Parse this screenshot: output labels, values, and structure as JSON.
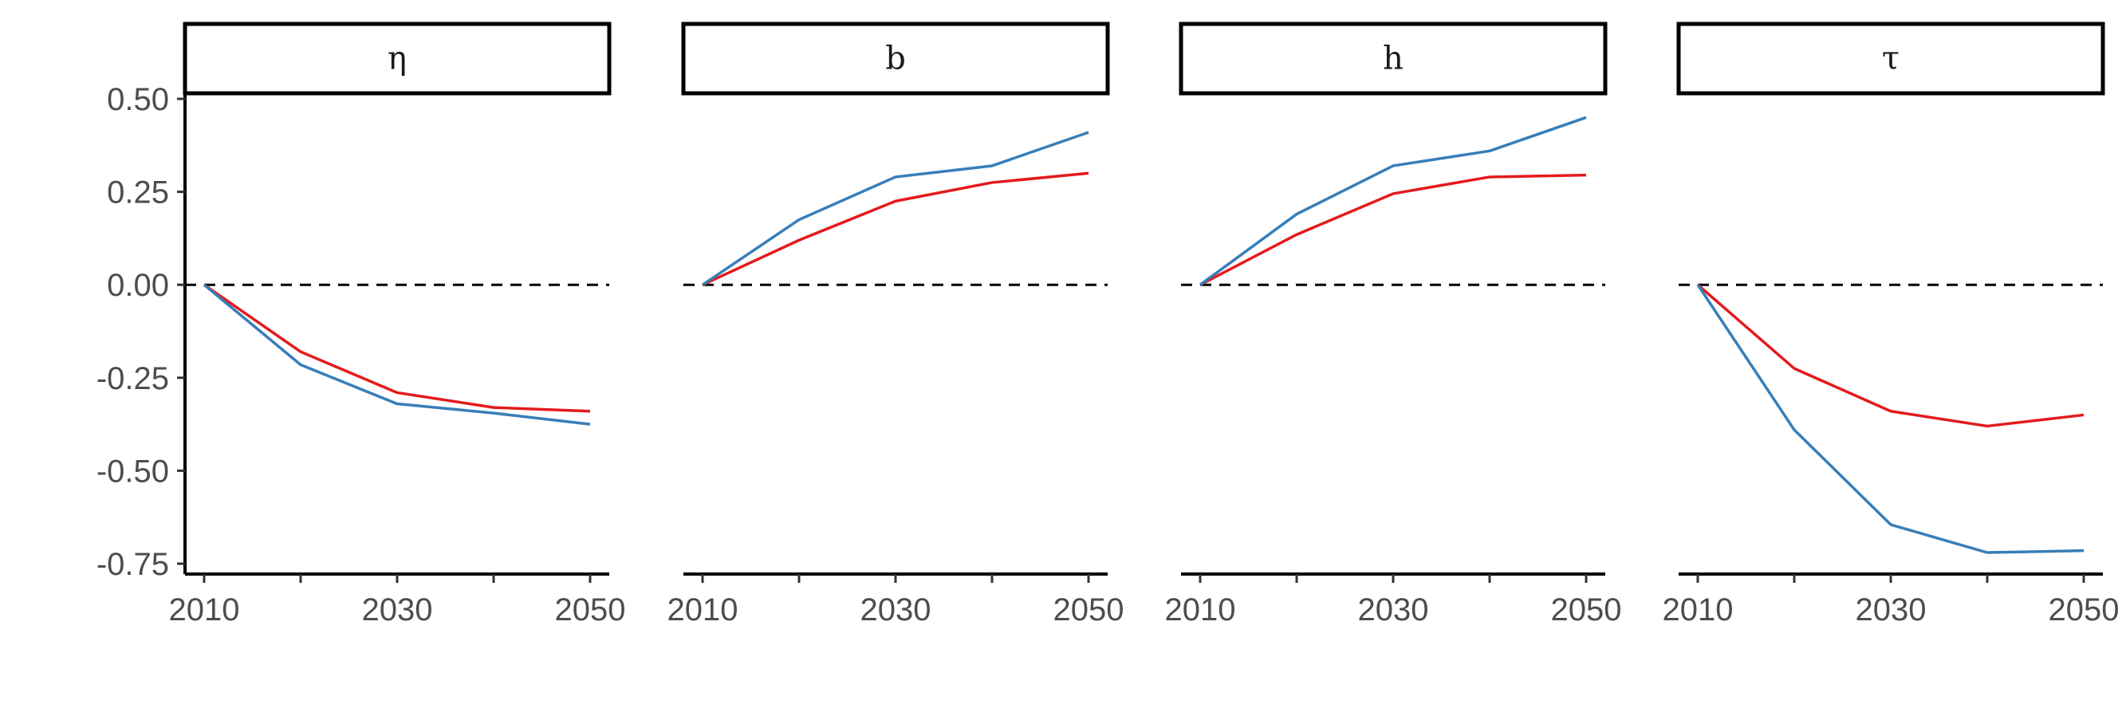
{
  "chart_data": {
    "type": "line",
    "x": [
      2010,
      2020,
      2030,
      2040,
      2050
    ],
    "x_tick_labels": [
      "2010",
      "2030",
      "2050"
    ],
    "x_ticks": [
      2010,
      2020,
      2030,
      2040,
      2050
    ],
    "y_tick_labels": [
      "0.50",
      "0.25",
      "0.00",
      "-0.25",
      "-0.50",
      "-0.75"
    ],
    "y_ticks": [
      0.5,
      0.25,
      0.0,
      -0.25,
      -0.5,
      -0.75
    ],
    "xlim": [
      2010,
      2050
    ],
    "ylim": [
      -0.77,
      0.5
    ],
    "reference_line": 0,
    "grid": false,
    "legend": "none",
    "colors": {
      "red": "#e41a1c",
      "blue": "#377eb8",
      "reference": "#000000"
    },
    "panels": [
      {
        "label": "η",
        "series": [
          {
            "color": "#e41a1c",
            "values": [
              0.0,
              -0.18,
              -0.29,
              -0.33,
              -0.34
            ]
          },
          {
            "color": "#377eb8",
            "values": [
              0.0,
              -0.215,
              -0.32,
              -0.345,
              -0.375
            ]
          }
        ]
      },
      {
        "label": "b",
        "series": [
          {
            "color": "#e41a1c",
            "values": [
              0.0,
              0.12,
              0.225,
              0.275,
              0.3
            ]
          },
          {
            "color": "#377eb8",
            "values": [
              0.0,
              0.175,
              0.29,
              0.32,
              0.41
            ]
          }
        ]
      },
      {
        "label": "h",
        "series": [
          {
            "color": "#e41a1c",
            "values": [
              0.0,
              0.135,
              0.245,
              0.29,
              0.295
            ]
          },
          {
            "color": "#377eb8",
            "values": [
              0.0,
              0.19,
              0.32,
              0.36,
              0.45
            ]
          }
        ]
      },
      {
        "label": "τ",
        "series": [
          {
            "color": "#e41a1c",
            "values": [
              0.0,
              -0.225,
              -0.34,
              -0.38,
              -0.35
            ]
          },
          {
            "color": "#377eb8",
            "values": [
              0.0,
              -0.39,
              -0.645,
              -0.72,
              -0.715
            ]
          }
        ]
      }
    ]
  }
}
